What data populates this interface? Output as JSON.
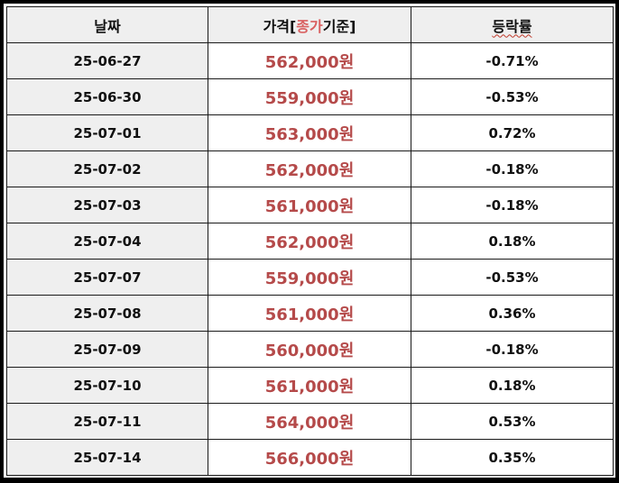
{
  "table": {
    "headers": {
      "date": "날짜",
      "price_prefix": "가격[",
      "price_highlight": "종가",
      "price_suffix": "기준]",
      "change": "등락률"
    },
    "rows": [
      {
        "date": "25-06-27",
        "price": "562,000원",
        "change": "-0.71%"
      },
      {
        "date": "25-06-30",
        "price": "559,000원",
        "change": "-0.53%"
      },
      {
        "date": "25-07-01",
        "price": "563,000원",
        "change": "0.72%"
      },
      {
        "date": "25-07-02",
        "price": "562,000원",
        "change": "-0.18%"
      },
      {
        "date": "25-07-03",
        "price": "561,000원",
        "change": "-0.18%"
      },
      {
        "date": "25-07-04",
        "price": "562,000원",
        "change": "0.18%"
      },
      {
        "date": "25-07-07",
        "price": "559,000원",
        "change": "-0.53%"
      },
      {
        "date": "25-07-08",
        "price": "561,000원",
        "change": "0.36%"
      },
      {
        "date": "25-07-09",
        "price": "560,000원",
        "change": "-0.18%"
      },
      {
        "date": "25-07-10",
        "price": "561,000원",
        "change": "0.18%"
      },
      {
        "date": "25-07-11",
        "price": "564,000원",
        "change": "0.53%"
      },
      {
        "date": "25-07-14",
        "price": "566,000원",
        "change": "0.35%"
      }
    ]
  },
  "colors": {
    "price_text": "#b54a4a",
    "header_highlight": "#d96060",
    "header_bg": "#efefef",
    "date_bg": "#efefef"
  }
}
